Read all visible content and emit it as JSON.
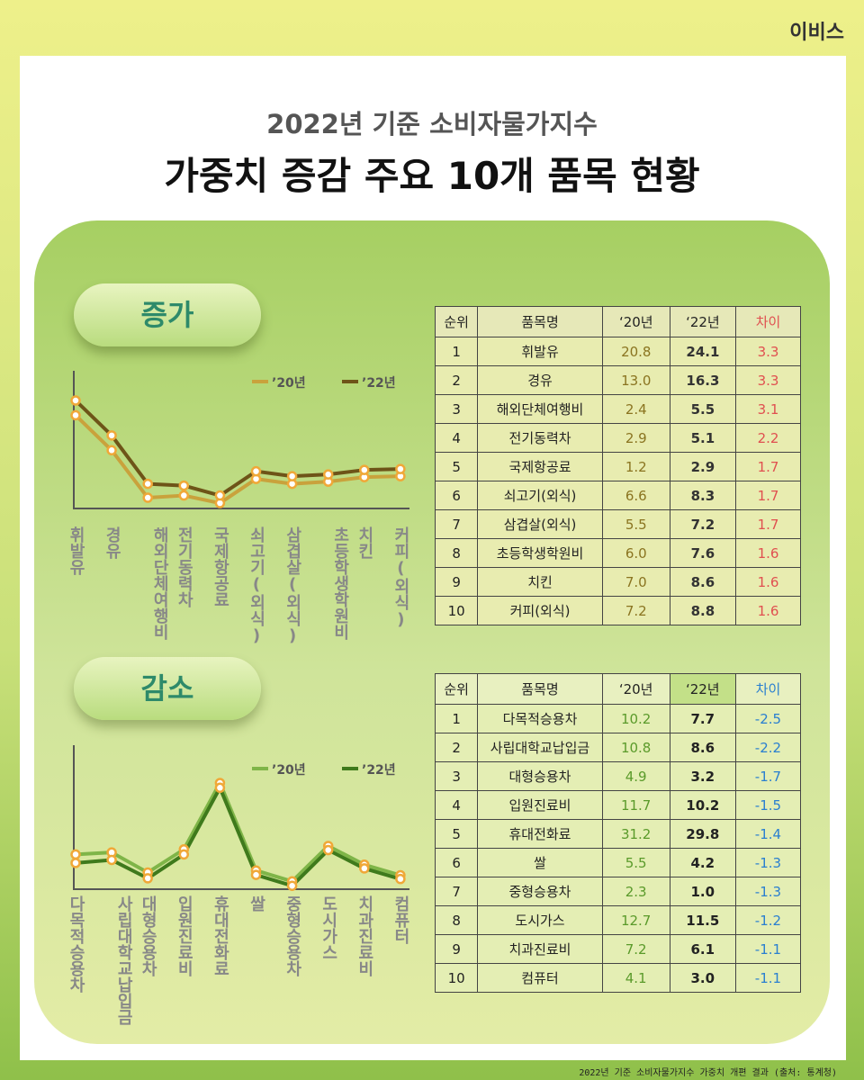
{
  "brand": "이비스",
  "header": {
    "title_top": "2022년 기준 소비자물가지수",
    "title_main": "가중치 증감 주요 10개 품목 현황"
  },
  "sections": [
    "증가",
    "감소"
  ],
  "chart_data": [
    {
      "type": "line",
      "categories": [
        [
          "휘발유"
        ],
        [
          "경유"
        ],
        [
          "해외단체",
          "여행비"
        ],
        [
          "전기동력차"
        ],
        [
          "국제항공료"
        ],
        [
          "쇠고기(외식)"
        ],
        [
          "삼겹살(외식)"
        ],
        [
          "초등학생",
          "학원비"
        ],
        [
          "치킨"
        ],
        [
          "커피(외식)"
        ]
      ],
      "series": [
        {
          "name": "’20년",
          "color": "#c9a23c",
          "values": [
            20.8,
            13.0,
            2.4,
            2.9,
            1.2,
            6.6,
            5.5,
            6.0,
            7.0,
            7.2
          ]
        },
        {
          "name": "’22년",
          "color": "#6e5418",
          "values": [
            24.1,
            16.3,
            5.5,
            5.1,
            2.9,
            8.3,
            7.2,
            7.6,
            8.6,
            8.8
          ]
        }
      ]
    },
    {
      "type": "line",
      "categories": [
        [
          "다목적승용차"
        ],
        [
          "사립대학교",
          "납입금"
        ],
        [
          "대형승용차"
        ],
        [
          "입원진료비"
        ],
        [
          "휴대전화료"
        ],
        [
          "쌀"
        ],
        [
          "중형승용차"
        ],
        [
          "도시가스"
        ],
        [
          "치과진료비"
        ],
        [
          "컴퓨터"
        ]
      ],
      "series": [
        {
          "name": "’20년",
          "color": "#7fb548",
          "values": [
            10.2,
            10.8,
            4.9,
            11.7,
            31.2,
            5.5,
            2.3,
            12.7,
            7.2,
            4.1
          ]
        },
        {
          "name": "’22년",
          "color": "#3f7a1c",
          "values": [
            7.7,
            8.6,
            3.2,
            10.2,
            29.8,
            4.2,
            1.0,
            11.5,
            6.1,
            3.0
          ]
        }
      ]
    }
  ],
  "tables": [
    {
      "header": [
        "순위",
        "품목명",
        "‘20년",
        "‘22년",
        "차이"
      ],
      "rows": [
        [
          "1",
          "휘발유",
          "20.8",
          "24.1",
          "3.3"
        ],
        [
          "2",
          "경유",
          "13.0",
          "16.3",
          "3.3"
        ],
        [
          "3",
          "해외단체여행비",
          "2.4",
          "5.5",
          "3.1"
        ],
        [
          "4",
          "전기동력차",
          "2.9",
          "5.1",
          "2.2"
        ],
        [
          "5",
          "국제항공료",
          "1.2",
          "2.9",
          "1.7"
        ],
        [
          "6",
          "쇠고기(외식)",
          "6.6",
          "8.3",
          "1.7"
        ],
        [
          "7",
          "삼겹살(외식)",
          "5.5",
          "7.2",
          "1.7"
        ],
        [
          "8",
          "초등학생학원비",
          "6.0",
          "7.6",
          "1.6"
        ],
        [
          "9",
          "치킨",
          "7.0",
          "8.6",
          "1.6"
        ],
        [
          "10",
          "커피(외식)",
          "7.2",
          "8.8",
          "1.6"
        ]
      ]
    },
    {
      "header": [
        "순위",
        "품목명",
        "‘20년",
        "‘22년",
        "차이"
      ],
      "rows": [
        [
          "1",
          "다목적승용차",
          "10.2",
          "7.7",
          "-2.5"
        ],
        [
          "2",
          "사립대학교납입금",
          "10.8",
          "8.6",
          "-2.2"
        ],
        [
          "3",
          "대형승용차",
          "4.9",
          "3.2",
          "-1.7"
        ],
        [
          "4",
          "입원진료비",
          "11.7",
          "10.2",
          "-1.5"
        ],
        [
          "5",
          "휴대전화료",
          "31.2",
          "29.8",
          "-1.4"
        ],
        [
          "6",
          "쌀",
          "5.5",
          "4.2",
          "-1.3"
        ],
        [
          "7",
          "중형승용차",
          "2.3",
          "1.0",
          "-1.3"
        ],
        [
          "8",
          "도시가스",
          "12.7",
          "11.5",
          "-1.2"
        ],
        [
          "9",
          "치과진료비",
          "7.2",
          "6.1",
          "-1.1"
        ],
        [
          "10",
          "컴퓨터",
          "4.1",
          "3.0",
          "-1.1"
        ]
      ]
    }
  ],
  "footer": "2022년 기준 소비자물가지수 가중치 개편 결과 (출처: 통계청)"
}
